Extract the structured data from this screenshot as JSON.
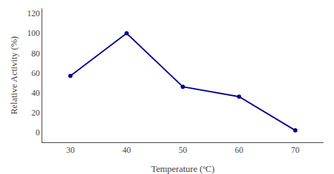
{
  "chart_data": {
    "type": "line",
    "x": [
      30,
      40,
      50,
      60,
      70
    ],
    "values": [
      57,
      100,
      46,
      36,
      2
    ],
    "color": "#00008B",
    "marker": "circle",
    "xlabel": "Temperature (ºC)",
    "ylabel": "Relative Activity (%)",
    "xlim": [
      25,
      75
    ],
    "ylim": [
      -10,
      125
    ],
    "xticks": [
      30,
      40,
      50,
      60,
      70
    ],
    "yticks": [
      0,
      20,
      40,
      60,
      80,
      100,
      120
    ],
    "grid": false
  }
}
